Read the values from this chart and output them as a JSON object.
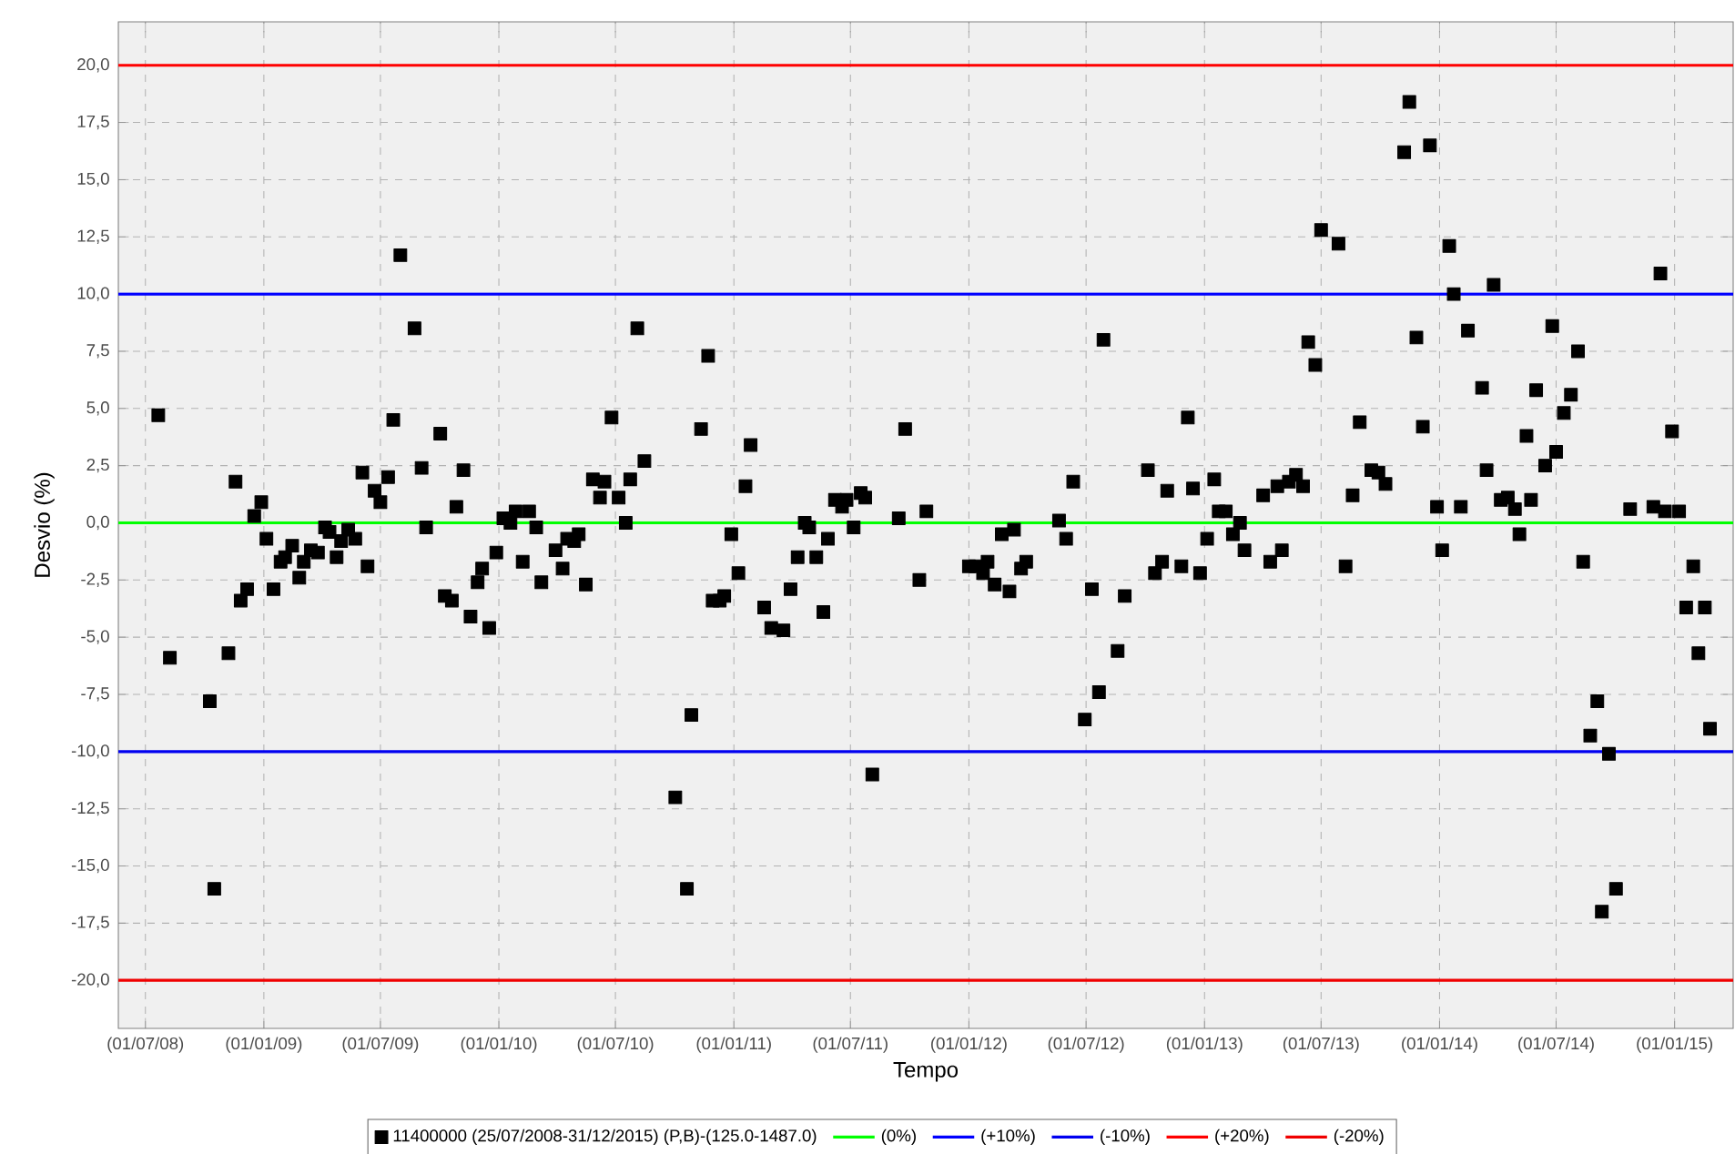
{
  "chart_data": {
    "type": "scatter",
    "xlabel": "Tempo",
    "ylabel": "Desvio (%)",
    "xlim": [
      "2008-05-20",
      "2015-04-02"
    ],
    "ylim": [
      -22.1,
      21.9
    ],
    "xticks": [
      {
        "value": "2008-07-01",
        "label": "(01/07/08)"
      },
      {
        "value": "2009-01-01",
        "label": "(01/01/09)"
      },
      {
        "value": "2009-07-01",
        "label": "(01/07/09)"
      },
      {
        "value": "2010-01-01",
        "label": "(01/01/10)"
      },
      {
        "value": "2010-07-01",
        "label": "(01/07/10)"
      },
      {
        "value": "2011-01-01",
        "label": "(01/01/11)"
      },
      {
        "value": "2011-07-01",
        "label": "(01/07/11)"
      },
      {
        "value": "2012-01-01",
        "label": "(01/01/12)"
      },
      {
        "value": "2012-07-01",
        "label": "(01/07/12)"
      },
      {
        "value": "2013-01-01",
        "label": "(01/01/13)"
      },
      {
        "value": "2013-07-01",
        "label": "(01/07/13)"
      },
      {
        "value": "2014-01-01",
        "label": "(01/01/14)"
      },
      {
        "value": "2014-07-01",
        "label": "(01/07/14)"
      },
      {
        "value": "2015-01-01",
        "label": "(01/01/15)"
      }
    ],
    "yticks": [
      {
        "value": -20,
        "label": "-20,0"
      },
      {
        "value": -17.5,
        "label": "-17,5"
      },
      {
        "value": -15,
        "label": "-15,0"
      },
      {
        "value": -12.5,
        "label": "-12,5"
      },
      {
        "value": -10,
        "label": "-10,0"
      },
      {
        "value": -7.5,
        "label": "-7,5"
      },
      {
        "value": -5,
        "label": "-5,0"
      },
      {
        "value": -2.5,
        "label": "-2,5"
      },
      {
        "value": 0,
        "label": "0,0"
      },
      {
        "value": 2.5,
        "label": "2,5"
      },
      {
        "value": 5,
        "label": "5,0"
      },
      {
        "value": 7.5,
        "label": "7,5"
      },
      {
        "value": 10,
        "label": "10,0"
      },
      {
        "value": 12.5,
        "label": "12,5"
      },
      {
        "value": 15,
        "label": "15,0"
      },
      {
        "value": 17.5,
        "label": "17,5"
      },
      {
        "value": 20,
        "label": "20,0"
      }
    ],
    "grid": true,
    "legend": "bottom",
    "marker": "square",
    "x": [
      "2008-07-21",
      "2008-08-08",
      "2008-10-09",
      "2008-10-16",
      "2008-11-07",
      "2008-11-18",
      "2008-11-26",
      "2008-12-06",
      "2008-12-17",
      "2008-12-28",
      "2009-01-05",
      "2009-01-16",
      "2009-01-27",
      "2009-02-03",
      "2009-02-14",
      "2009-02-25",
      "2009-03-04",
      "2009-03-15",
      "2009-03-26",
      "2009-04-06",
      "2009-04-13",
      "2009-04-24",
      "2009-05-01",
      "2009-05-12",
      "2009-05-23",
      "2009-06-03",
      "2009-06-11",
      "2009-06-22",
      "2009-07-01",
      "2009-07-13",
      "2009-07-21",
      "2009-08-01",
      "2009-08-23",
      "2009-09-03",
      "2009-09-10",
      "2009-10-02",
      "2009-10-09",
      "2009-10-20",
      "2009-10-27",
      "2009-11-07",
      "2009-11-18",
      "2009-11-29",
      "2009-12-06",
      "2009-12-17",
      "2009-12-28",
      "2010-01-08",
      "2010-01-19",
      "2010-01-27",
      "2010-02-07",
      "2010-02-17",
      "2010-02-28",
      "2010-03-08",
      "2010-03-30",
      "2010-04-10",
      "2010-04-17",
      "2010-04-28",
      "2010-05-05",
      "2010-05-16",
      "2010-05-27",
      "2010-06-07",
      "2010-06-14",
      "2010-06-25",
      "2010-07-06",
      "2010-07-17",
      "2010-07-24",
      "2010-08-04",
      "2010-08-15",
      "2010-10-02",
      "2010-10-20",
      "2010-10-27",
      "2010-11-11",
      "2010-11-22",
      "2010-11-29",
      "2010-12-10",
      "2010-12-17",
      "2010-12-28",
      "2011-01-08",
      "2011-01-19",
      "2011-01-27",
      "2011-02-17",
      "2011-02-28",
      "2011-03-19",
      "2011-03-30",
      "2011-04-10",
      "2011-04-21",
      "2011-04-28",
      "2011-05-09",
      "2011-05-20",
      "2011-05-27",
      "2011-06-07",
      "2011-06-18",
      "2011-06-25",
      "2011-07-06",
      "2011-07-17",
      "2011-07-24",
      "2011-08-04",
      "2011-09-14",
      "2011-09-24",
      "2011-10-16",
      "2011-10-27",
      "2012-01-01",
      "2012-01-12",
      "2012-01-23",
      "2012-01-30",
      "2012-02-10",
      "2012-02-21",
      "2012-03-04",
      "2012-03-11",
      "2012-03-22",
      "2012-03-30",
      "2012-05-20",
      "2012-05-31",
      "2012-06-11",
      "2012-06-29",
      "2012-07-10",
      "2012-07-21",
      "2012-07-28",
      "2012-08-19",
      "2012-08-30",
      "2012-10-05",
      "2012-10-16",
      "2012-10-27",
      "2012-11-04",
      "2012-11-26",
      "2012-12-06",
      "2012-12-14",
      "2012-12-25",
      "2013-01-05",
      "2013-01-16",
      "2013-01-23",
      "2013-02-03",
      "2013-02-14",
      "2013-02-25",
      "2013-03-04",
      "2013-04-02",
      "2013-04-13",
      "2013-04-24",
      "2013-05-01",
      "2013-05-12",
      "2013-05-23",
      "2013-06-03",
      "2013-06-11",
      "2013-06-22",
      "2013-07-01",
      "2013-07-28",
      "2013-08-08",
      "2013-08-19",
      "2013-08-30",
      "2013-09-17",
      "2013-09-28",
      "2013-10-09",
      "2013-11-07",
      "2013-11-15",
      "2013-11-26",
      "2013-12-06",
      "2013-12-17",
      "2013-12-28",
      "2014-01-05",
      "2014-01-16",
      "2014-01-23",
      "2014-02-03",
      "2014-02-14",
      "2014-03-08",
      "2014-03-15",
      "2014-03-26",
      "2014-04-06",
      "2014-04-17",
      "2014-04-28",
      "2014-05-05",
      "2014-05-16",
      "2014-05-23",
      "2014-05-31",
      "2014-06-14",
      "2014-06-25",
      "2014-07-01",
      "2014-07-13",
      "2014-07-24",
      "2014-08-04",
      "2014-08-12",
      "2014-08-23",
      "2014-09-03",
      "2014-09-10",
      "2014-09-21",
      "2014-10-02",
      "2014-10-24",
      "2014-11-29",
      "2014-12-10",
      "2014-12-17",
      "2014-12-28",
      "2015-01-08",
      "2015-01-19",
      "2015-01-30",
      "2015-02-07",
      "2015-02-17",
      "2015-02-25"
    ],
    "series": [
      {
        "name": "11400000 (25/07/2008-31/12/2015) (P,B)-(125.0-1487.0)",
        "color": "#000000",
        "values": [
          4.7,
          -5.9,
          -7.8,
          -16.0,
          -5.7,
          1.8,
          -3.4,
          -2.9,
          0.3,
          0.9,
          -0.7,
          -2.9,
          -1.7,
          -1.5,
          -1.0,
          -2.4,
          -1.7,
          -1.2,
          -1.3,
          -0.2,
          -0.4,
          -1.5,
          -0.8,
          -0.3,
          -0.7,
          2.2,
          -1.9,
          1.4,
          0.9,
          2.0,
          4.5,
          11.7,
          8.5,
          2.4,
          -0.2,
          3.9,
          -3.2,
          -3.4,
          0.7,
          2.3,
          -4.1,
          -2.6,
          -2.0,
          -4.6,
          -1.3,
          0.2,
          0.0,
          0.5,
          -1.7,
          0.5,
          -0.2,
          -2.6,
          -1.2,
          -2.0,
          -0.7,
          -0.8,
          -0.5,
          -2.7,
          1.9,
          1.1,
          1.8,
          4.6,
          1.1,
          0.0,
          1.9,
          8.5,
          2.7,
          -12.0,
          -16.0,
          -8.4,
          4.1,
          7.3,
          -3.4,
          -3.4,
          -3.2,
          -0.5,
          -2.2,
          1.6,
          3.4,
          -3.7,
          -4.6,
          -4.7,
          -2.9,
          -1.5,
          0.0,
          -0.2,
          -1.5,
          -3.9,
          -0.7,
          1.0,
          0.7,
          1.0,
          -0.2,
          1.3,
          1.1,
          -11.0,
          0.2,
          4.1,
          -2.5,
          0.5,
          -1.9,
          -1.9,
          -2.2,
          -1.7,
          -2.7,
          -0.5,
          -3.0,
          -0.3,
          -2.0,
          -1.7,
          0.1,
          -0.7,
          1.8,
          -8.6,
          -2.9,
          -7.4,
          8.0,
          -5.6,
          -3.2,
          2.3,
          -2.2,
          -1.7,
          1.4,
          -1.9,
          4.6,
          1.5,
          -2.2,
          -0.7,
          1.9,
          0.5,
          0.5,
          -0.5,
          0.0,
          -1.2,
          1.2,
          -1.7,
          1.6,
          -1.2,
          1.8,
          2.1,
          1.6,
          7.9,
          6.9,
          12.8,
          12.2,
          -1.9,
          1.2,
          4.4,
          2.3,
          2.2,
          1.7,
          16.2,
          18.4,
          8.1,
          4.2,
          16.5,
          0.7,
          -1.2,
          12.1,
          10.0,
          0.7,
          8.4,
          5.9,
          2.3,
          10.4,
          1.0,
          1.1,
          0.6,
          -0.5,
          3.8,
          1.0,
          5.8,
          2.5,
          8.6,
          3.1,
          4.8,
          5.6,
          7.5,
          -1.7,
          -9.3,
          -7.8,
          -17.0,
          -10.1,
          -16.0,
          0.6,
          0.7,
          10.9,
          0.5,
          4.0,
          0.5,
          -3.7,
          -1.9,
          -5.7,
          -3.7,
          -9.0
        ]
      }
    ],
    "ref_lines": [
      {
        "axis": "y",
        "value": 0,
        "label": "(0%)",
        "color": "#00ff00"
      },
      {
        "axis": "y",
        "value": 10,
        "label": "(+10%)",
        "color": "#0000ff"
      },
      {
        "axis": "y",
        "value": -10,
        "label": "(-10%)",
        "color": "#0000f0"
      },
      {
        "axis": "y",
        "value": 20,
        "label": "(+20%)",
        "color": "#ff0000"
      },
      {
        "axis": "y",
        "value": -20,
        "label": "(-20%)",
        "color": "#f00000"
      }
    ]
  }
}
